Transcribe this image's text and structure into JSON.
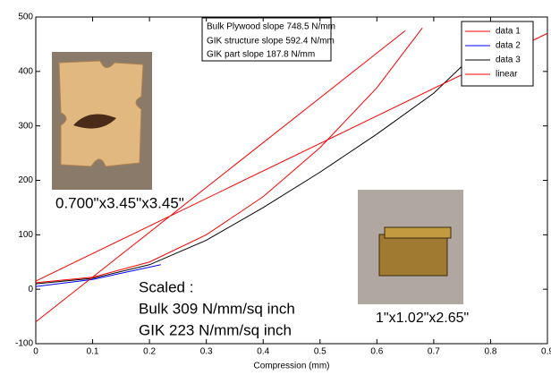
{
  "chart_data": {
    "type": "line",
    "xlabel": "Compression (mm)",
    "xlim": [
      0,
      0.9
    ],
    "xticks": [
      0,
      0.1,
      0.2,
      0.3,
      0.4,
      0.5,
      0.6,
      0.7,
      0.8,
      0.9
    ],
    "ylim": [
      -100,
      500
    ],
    "yticks": [
      -100,
      0,
      100,
      200,
      300,
      400,
      500
    ],
    "legend": "upper right",
    "series": [
      {
        "name": "data 1",
        "color": "#ff0000",
        "x": [
          0,
          0.1,
          0.2,
          0.3,
          0.4,
          0.5,
          0.6,
          0.68
        ],
        "values": [
          12,
          22,
          50,
          100,
          170,
          260,
          370,
          480
        ]
      },
      {
        "name": "data 2",
        "color": "#0000ff",
        "x": [
          0,
          0.1,
          0.22
        ],
        "values": [
          5,
          18,
          45
        ]
      },
      {
        "name": "data 3",
        "color": "#000000",
        "x": [
          0,
          0.1,
          0.2,
          0.3,
          0.4,
          0.5,
          0.6,
          0.7,
          0.76
        ],
        "values": [
          10,
          20,
          45,
          90,
          150,
          215,
          285,
          360,
          420
        ]
      },
      {
        "name": "linear",
        "color": "#ff0000",
        "x": [
          0,
          0.65,
          null,
          0,
          0.9
        ],
        "values": [
          -60,
          475,
          null,
          15,
          470
        ]
      }
    ],
    "annotations": {
      "slopes": [
        "Bulk Plywood slope 748.5 N/mm",
        "GIK structure slope 592.4 N/mm",
        "GIK part slope 187.8 N/mm"
      ],
      "bulk_size": "0.700\"x3.45\"x3.45\"",
      "scaled": [
        "Scaled :",
        "Bulk 309 N/mm/sq inch",
        "GIK 223 N/mm/sq inch"
      ],
      "gik_size": "1\"x1.02\"x2.65\""
    }
  }
}
